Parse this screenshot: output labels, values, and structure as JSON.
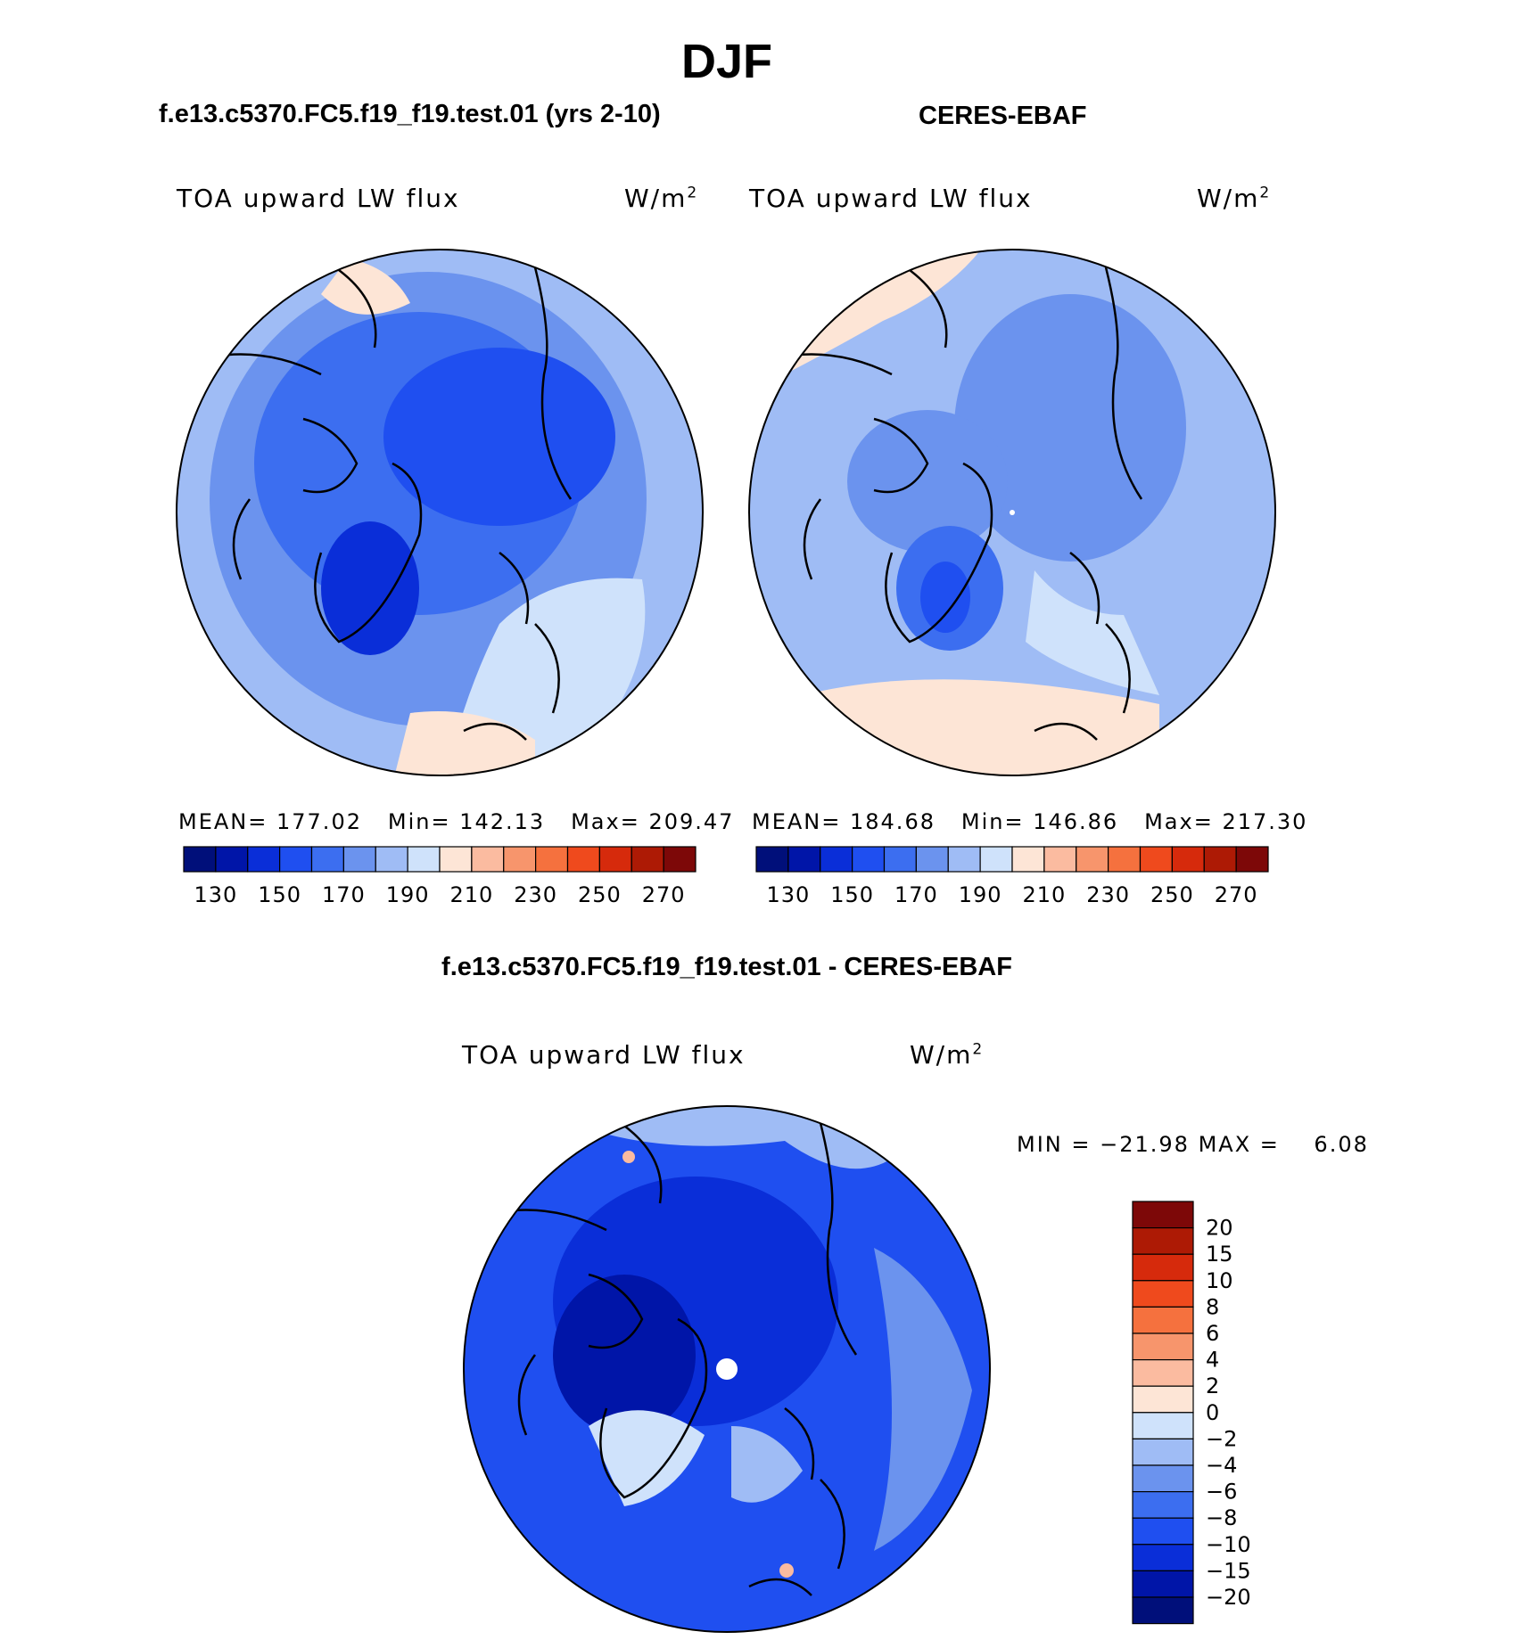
{
  "figure": {
    "title": "DJF",
    "panels": [
      {
        "id": "model",
        "header": "f.e13.c5370.FC5.f19_f19.test.01 (yrs 2-10)",
        "variable": "TOA upward LW flux",
        "units": "W/m",
        "units_exp": "2",
        "stats": {
          "mean_label": "MEAN=",
          "mean": "177.02",
          "min_label": "Min=",
          "min": "142.13",
          "max_label": "Max=",
          "max": "209.47"
        }
      },
      {
        "id": "obs",
        "header": "CERES-EBAF",
        "variable": "TOA upward LW flux",
        "units": "W/m",
        "units_exp": "2",
        "stats": {
          "mean_label": "MEAN=",
          "mean": "184.68",
          "min_label": "Min=",
          "min": "146.86",
          "max_label": "Max=",
          "max": "217.30"
        }
      },
      {
        "id": "diff",
        "header": "f.e13.c5370.FC5.f19_f19.test.01 - CERES-EBAF",
        "variable": "TOA upward LW flux",
        "units": "W/m",
        "units_exp": "2",
        "stats": {
          "min_label": "MIN =",
          "min": "−21.98",
          "max_label": "MAX =",
          "max": "6.08"
        }
      }
    ]
  },
  "chart_data": [
    {
      "type": "contour-map",
      "title": "f.e13.c5370.FC5.f19_f19.test.01 (yrs 2-10)",
      "projection": "north polar stereographic",
      "variable": "TOA upward LW flux",
      "units": "W/m^2",
      "mean": 177.02,
      "min": 142.13,
      "max": 209.47,
      "levels": [
        130,
        140,
        150,
        160,
        170,
        180,
        190,
        200,
        210,
        220,
        230,
        240,
        250,
        260,
        270
      ],
      "tick_labels": [
        "130",
        "150",
        "170",
        "190",
        "210",
        "230",
        "250",
        "270"
      ],
      "colors": [
        "#000f7a",
        "#0015a8",
        "#0a2ed8",
        "#1f4ff0",
        "#3c6ef0",
        "#6b93ee",
        "#9fbcf5",
        "#cfe2fb",
        "#fde5d6",
        "#fbbba0",
        "#f7956c",
        "#f5713e",
        "#ef4a1d",
        "#d62a0c",
        "#ad1a05",
        "#7d0808"
      ]
    },
    {
      "type": "contour-map",
      "title": "CERES-EBAF",
      "projection": "north polar stereographic",
      "variable": "TOA upward LW flux",
      "units": "W/m^2",
      "mean": 184.68,
      "min": 146.86,
      "max": 217.3,
      "levels": [
        130,
        140,
        150,
        160,
        170,
        180,
        190,
        200,
        210,
        220,
        230,
        240,
        250,
        260,
        270
      ],
      "tick_labels": [
        "130",
        "150",
        "170",
        "190",
        "210",
        "230",
        "250",
        "270"
      ],
      "colors": [
        "#000f7a",
        "#0015a8",
        "#0a2ed8",
        "#1f4ff0",
        "#3c6ef0",
        "#6b93ee",
        "#9fbcf5",
        "#cfe2fb",
        "#fde5d6",
        "#fbbba0",
        "#f7956c",
        "#f5713e",
        "#ef4a1d",
        "#d62a0c",
        "#ad1a05",
        "#7d0808"
      ]
    },
    {
      "type": "contour-map",
      "title": "f.e13.c5370.FC5.f19_f19.test.01 - CERES-EBAF",
      "projection": "north polar stereographic",
      "variable": "TOA upward LW flux",
      "units": "W/m^2",
      "min": -21.98,
      "max": 6.08,
      "levels": [
        -20,
        -15,
        -10,
        -8,
        -6,
        -4,
        -2,
        0,
        2,
        4,
        6,
        8,
        10,
        15,
        20
      ],
      "tick_labels": [
        "20",
        "15",
        "10",
        "8",
        "6",
        "4",
        "2",
        "0",
        "−2",
        "−4",
        "−6",
        "−8",
        "−10",
        "−15",
        "−20"
      ],
      "colors": [
        "#000f7a",
        "#0015a8",
        "#0a2ed8",
        "#1f4ff0",
        "#3c6ef0",
        "#6b93ee",
        "#9fbcf5",
        "#cfe2fb",
        "#fde5d6",
        "#fbbba0",
        "#f7956c",
        "#f5713e",
        "#ef4a1d",
        "#d62a0c",
        "#ad1a05",
        "#7d0808"
      ]
    }
  ]
}
